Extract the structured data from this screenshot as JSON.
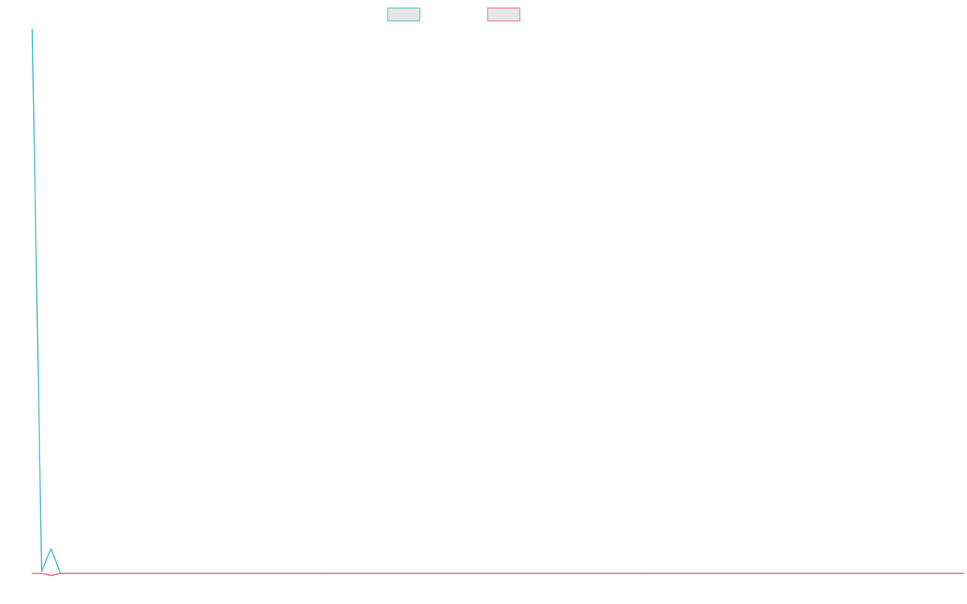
{
  "chart_data": {
    "type": "line",
    "title": "",
    "xlabel": "",
    "ylabel": "",
    "grid": false,
    "legend_position": "top-center",
    "series": [
      {
        "color": "#4BC0C0",
        "legend_fill": "#e6e6e6",
        "values": [
          1000,
          4,
          45,
          0,
          0,
          0,
          0,
          0,
          0,
          0,
          0,
          0,
          0,
          0,
          0,
          0,
          0,
          0,
          0,
          0,
          0,
          0,
          0,
          0,
          0,
          0,
          0,
          0,
          0,
          0,
          0,
          0,
          0,
          0,
          0,
          0,
          0,
          0,
          0,
          0,
          0,
          0,
          0,
          0,
          0,
          0,
          0,
          0,
          0,
          0,
          0,
          0,
          0,
          0,
          0,
          0,
          0,
          0,
          0,
          0,
          0,
          0,
          0,
          0,
          0,
          0,
          0,
          0,
          0,
          0,
          0,
          0,
          0,
          0,
          0,
          0,
          0,
          0,
          0,
          0,
          0,
          0,
          0,
          0,
          0,
          0,
          0,
          0,
          0,
          0,
          0,
          0,
          0,
          0,
          0,
          0,
          0,
          0,
          0,
          0
        ]
      },
      {
        "color": "#FF6384",
        "legend_fill": "#e6e6e6",
        "values": [
          0,
          0,
          -4,
          0,
          0,
          0,
          0,
          0,
          0,
          0,
          0,
          0,
          0,
          0,
          0,
          0,
          0,
          0,
          0,
          0,
          0,
          0,
          0,
          0,
          0,
          0,
          0,
          0,
          0,
          0,
          0,
          0,
          0,
          0,
          0,
          0,
          0,
          0,
          0,
          0,
          0,
          0,
          0,
          0,
          0,
          0,
          0,
          0,
          0,
          0,
          0,
          0,
          0,
          0,
          0,
          0,
          0,
          0,
          0,
          0,
          0,
          0,
          0,
          0,
          0,
          0,
          0,
          0,
          0,
          0,
          0,
          0,
          0,
          0,
          0,
          0,
          0,
          0,
          0,
          0,
          0,
          0,
          0,
          0,
          0,
          0,
          0,
          0,
          0,
          0,
          0,
          0,
          0,
          0,
          0,
          0,
          0,
          0,
          0,
          0
        ]
      }
    ],
    "ylim": [
      -6,
      1000
    ]
  }
}
